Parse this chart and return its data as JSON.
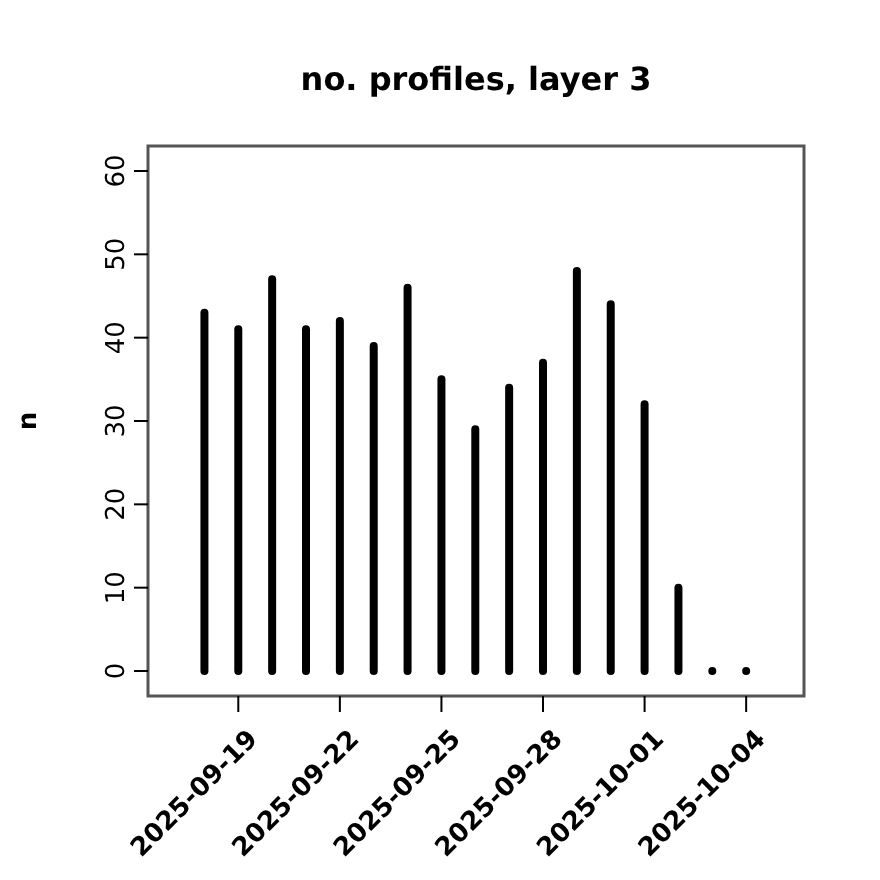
{
  "chart_data": {
    "type": "bar",
    "title": "no. profiles, layer 3",
    "ylabel": "n",
    "x": [
      "2025-09-18",
      "2025-09-19",
      "2025-09-20",
      "2025-09-21",
      "2025-09-22",
      "2025-09-23",
      "2025-09-24",
      "2025-09-25",
      "2025-09-26",
      "2025-09-27",
      "2025-09-28",
      "2025-09-29",
      "2025-09-30",
      "2025-10-01",
      "2025-10-02",
      "2025-10-03",
      "2025-10-04"
    ],
    "values": [
      43,
      41,
      47,
      41,
      42,
      39,
      46,
      35,
      29,
      34,
      37,
      48,
      44,
      32,
      10,
      0,
      0
    ],
    "color": "#000000",
    "xlim": [
      "2025-09-16T08:00",
      "2025-10-05T17:00"
    ],
    "xticks": [
      "2025-09-19",
      "2025-09-22",
      "2025-09-25",
      "2025-09-28",
      "2025-10-01",
      "2025-10-04"
    ],
    "ylim": [
      -3,
      63
    ],
    "yticks": [
      0,
      10,
      20,
      30,
      40,
      50,
      60
    ],
    "grid": false
  }
}
